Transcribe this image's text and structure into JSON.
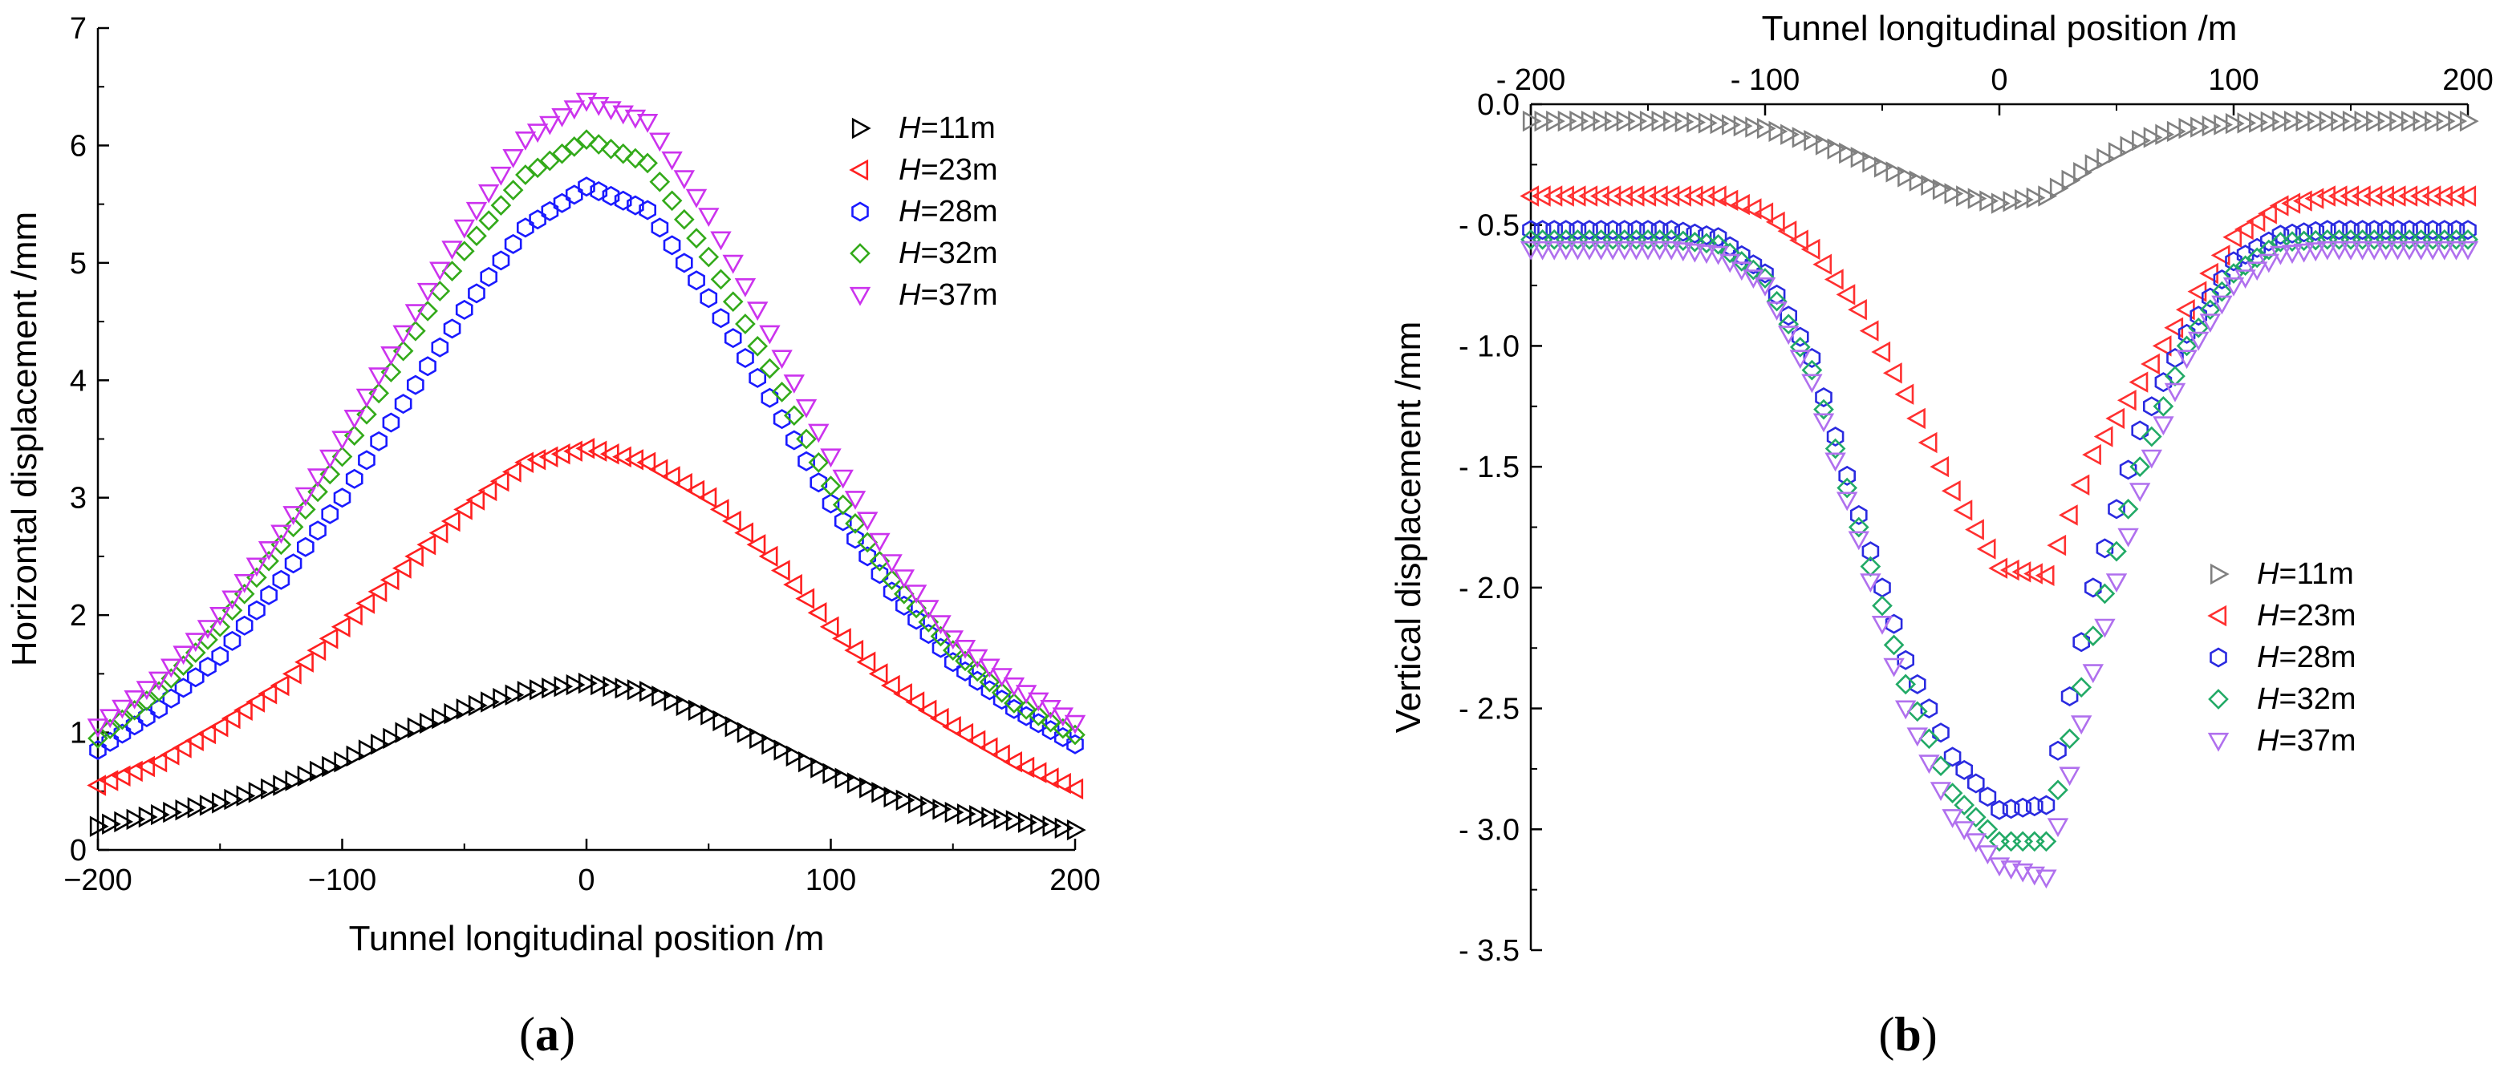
{
  "panels": [
    {
      "letter": "a",
      "legend_prefix": "H",
      "legend_items": [
        "=11m",
        "=23m",
        "=28m",
        "=32m",
        "=37m"
      ]
    },
    {
      "letter": "b",
      "legend_prefix": "H",
      "legend_items": [
        "=11m",
        "=23m",
        "=28m",
        "=32m",
        "=37m"
      ]
    }
  ],
  "chart_data": [
    {
      "type": "scatter",
      "title": "",
      "xlabel": "Tunnel longitudinal position /m",
      "ylabel": "Horizontal  displacement /mm",
      "xlim": [
        -200,
        200
      ],
      "ylim": [
        0,
        7
      ],
      "x_ticks": [
        -200,
        -100,
        0,
        100,
        200
      ],
      "x_tick_labels": [
        "−200",
        "−100",
        "0",
        "100",
        "200"
      ],
      "y_ticks": [
        0,
        1,
        2,
        3,
        4,
        5,
        6,
        7
      ],
      "y_tick_labels": [
        "0",
        "1",
        "2",
        "3",
        "4",
        "5",
        "6",
        "7"
      ],
      "grid": false,
      "legend_position": "top-right",
      "x": [
        -200,
        -175,
        -150,
        -125,
        -100,
        -75,
        -50,
        -25,
        0,
        25,
        50,
        75,
        100,
        125,
        150,
        175,
        200
      ],
      "series": [
        {
          "name": "H=11m",
          "marker": "triangle-right",
          "color": "#000000",
          "values": [
            0.2,
            0.3,
            0.4,
            0.55,
            0.75,
            1.0,
            1.2,
            1.35,
            1.42,
            1.35,
            1.15,
            0.9,
            0.65,
            0.45,
            0.32,
            0.25,
            0.17
          ]
        },
        {
          "name": "H=23m",
          "marker": "triangle-left",
          "color": "#ff2020",
          "values": [
            0.55,
            0.75,
            1.05,
            1.4,
            1.9,
            2.4,
            2.9,
            3.3,
            3.42,
            3.3,
            3.0,
            2.5,
            1.9,
            1.4,
            1.05,
            0.75,
            0.52
          ]
        },
        {
          "name": "H=28m",
          "marker": "hexagon",
          "color": "#1a1aff",
          "values": [
            0.85,
            1.2,
            1.65,
            2.3,
            3.0,
            3.8,
            4.6,
            5.3,
            5.65,
            5.45,
            4.7,
            3.85,
            2.95,
            2.2,
            1.6,
            1.2,
            0.9
          ]
        },
        {
          "name": "H=32m",
          "marker": "diamond",
          "color": "#33aa1a",
          "values": [
            0.95,
            1.35,
            1.9,
            2.6,
            3.35,
            4.25,
            5.1,
            5.75,
            6.05,
            5.85,
            5.05,
            4.1,
            3.1,
            2.3,
            1.7,
            1.25,
            0.98
          ]
        },
        {
          "name": "H=37m",
          "marker": "triangle-down",
          "color": "#cc33ee",
          "values": [
            1.05,
            1.45,
            2.0,
            2.7,
            3.5,
            4.4,
            5.3,
            6.05,
            6.38,
            6.2,
            5.4,
            4.4,
            3.35,
            2.45,
            1.8,
            1.4,
            1.08
          ]
        }
      ]
    },
    {
      "type": "scatter",
      "title": "",
      "xlabel": "Tunnel longitudinal position /m",
      "xlabel_position": "top",
      "ylabel": "Vertical displacement /mm",
      "xlim": [
        -200,
        200
      ],
      "ylim": [
        -3.5,
        0
      ],
      "x_ticks": [
        -200,
        -100,
        0,
        100,
        200
      ],
      "x_tick_labels": [
        "- 200",
        "- 100",
        "0",
        "100",
        "200"
      ],
      "y_ticks": [
        0,
        -0.5,
        -1,
        -1.5,
        -2,
        -2.5,
        -3,
        -3.5
      ],
      "y_tick_labels": [
        "0.0",
        "- 0.5",
        "- 1.0",
        "- 1.5",
        "- 2.0",
        "- 2.5",
        "- 3.0",
        "- 3.5"
      ],
      "grid": false,
      "legend_position": "bottom-right",
      "x": [
        -200,
        -180,
        -160,
        -140,
        -120,
        -100,
        -80,
        -60,
        -40,
        -20,
        0,
        20,
        40,
        60,
        80,
        100,
        120,
        140,
        160,
        180,
        200
      ],
      "series": [
        {
          "name": "H=11m",
          "marker": "triangle-right",
          "color": "#808080",
          "values": [
            -0.07,
            -0.07,
            -0.07,
            -0.07,
            -0.08,
            -0.1,
            -0.15,
            -0.22,
            -0.3,
            -0.37,
            -0.41,
            -0.38,
            -0.25,
            -0.15,
            -0.1,
            -0.08,
            -0.07,
            -0.07,
            -0.07,
            -0.07,
            -0.07
          ]
        },
        {
          "name": "H=23m",
          "marker": "triangle-left",
          "color": "#ff3030",
          "values": [
            -0.38,
            -0.38,
            -0.38,
            -0.38,
            -0.38,
            -0.45,
            -0.6,
            -0.85,
            -1.2,
            -1.6,
            -1.92,
            -1.95,
            -1.45,
            -1.15,
            -0.85,
            -0.55,
            -0.42,
            -0.38,
            -0.38,
            -0.38,
            -0.38
          ]
        },
        {
          "name": "H=28m",
          "marker": "hexagon",
          "color": "#2a2ae0",
          "values": [
            -0.52,
            -0.52,
            -0.52,
            -0.52,
            -0.55,
            -0.7,
            -1.05,
            -1.7,
            -2.3,
            -2.7,
            -2.92,
            -2.9,
            -2.0,
            -1.35,
            -0.95,
            -0.65,
            -0.54,
            -0.52,
            -0.52,
            -0.52,
            -0.52
          ]
        },
        {
          "name": "H=32m",
          "marker": "diamond",
          "color": "#22aa66",
          "values": [
            -0.56,
            -0.56,
            -0.56,
            -0.56,
            -0.58,
            -0.72,
            -1.1,
            -1.75,
            -2.4,
            -2.85,
            -3.05,
            -3.05,
            -2.2,
            -1.5,
            -1.0,
            -0.7,
            -0.57,
            -0.56,
            -0.56,
            -0.56,
            -0.56
          ]
        },
        {
          "name": "H=37m",
          "marker": "triangle-down",
          "color": "#b070ee",
          "values": [
            -0.6,
            -0.6,
            -0.6,
            -0.6,
            -0.62,
            -0.75,
            -1.15,
            -1.8,
            -2.5,
            -2.95,
            -3.15,
            -3.2,
            -2.35,
            -1.6,
            -1.05,
            -0.75,
            -0.62,
            -0.6,
            -0.6,
            -0.6,
            -0.6
          ]
        }
      ]
    }
  ]
}
